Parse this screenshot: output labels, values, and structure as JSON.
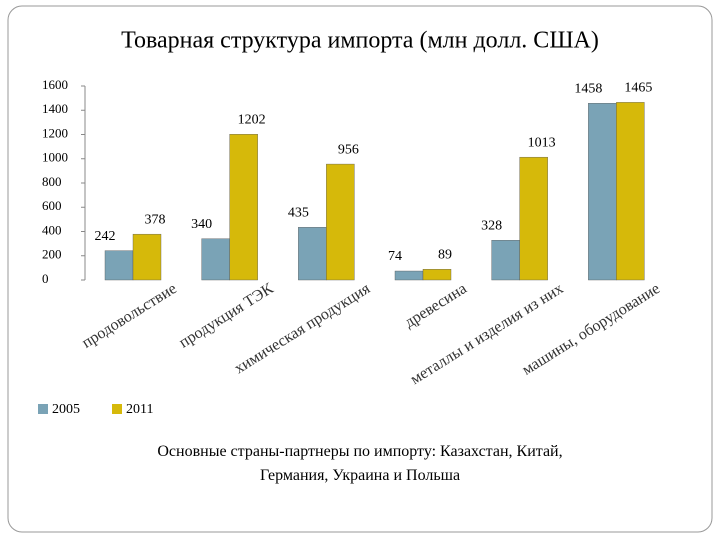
{
  "chart_data": {
    "type": "bar",
    "title": "Товарная структура импорта (млн долл. США)",
    "categories": [
      "продовольствие",
      "продукция ТЭК",
      "химическая продукция",
      "древесина",
      "металлы и изделия из них",
      "машины, оборудование"
    ],
    "series": [
      {
        "name": "2005",
        "color": "#7aa3b6",
        "values": [
          242,
          340,
          435,
          74,
          328,
          1458
        ]
      },
      {
        "name": "2011",
        "color": "#d6b90a",
        "values": [
          378,
          1202,
          956,
          89,
          1013,
          1465
        ]
      }
    ],
    "ylim": [
      0,
      1600
    ],
    "yticks": [
      0,
      200,
      400,
      600,
      800,
      1000,
      1200,
      1400,
      1600
    ],
    "legend": "bottom-left",
    "note": "Основные страны-партнеры по импорту: Казахстан, Китай, Германия, Украина и Польша"
  }
}
